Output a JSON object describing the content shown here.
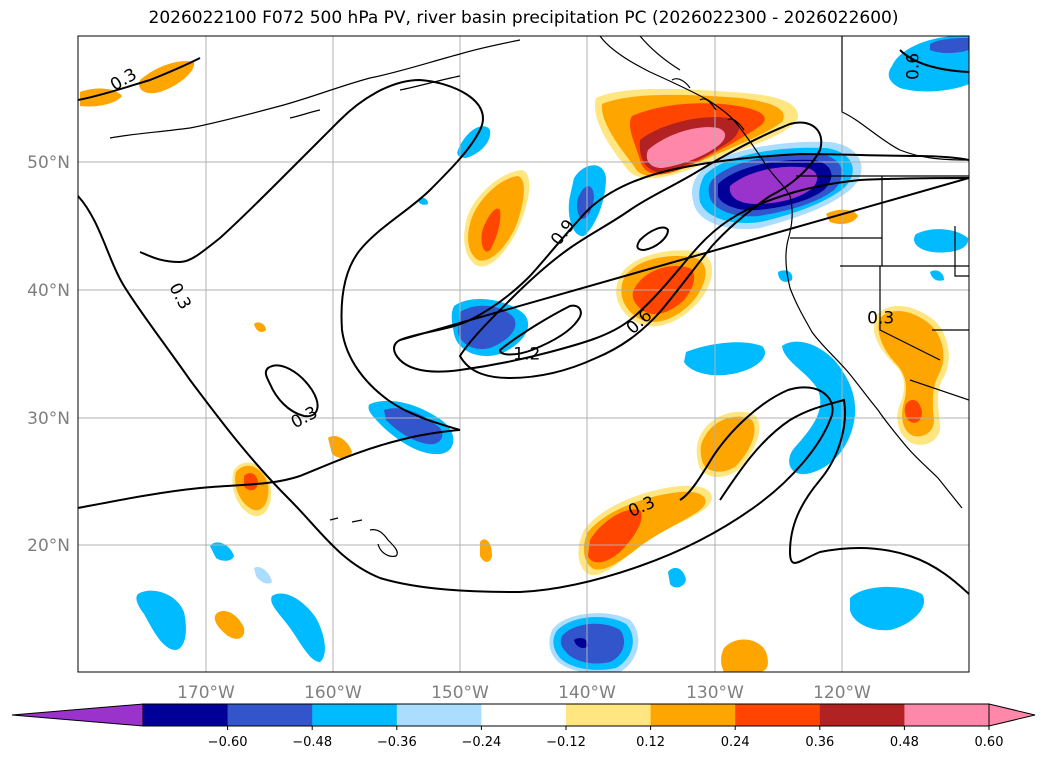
{
  "title": "2026022100 F072 500 hPa PV, river basin precipitation PC (2026022300 - 2026022600)",
  "map": {
    "longitude_labels": [
      "170°W",
      "160°W",
      "150°W",
      "140°W",
      "130°W",
      "120°W"
    ],
    "latitude_labels": [
      "50°N",
      "40°N",
      "30°N",
      "20°N"
    ],
    "contour_labels": [
      {
        "text": "0.3",
        "lon": -176.5,
        "lat": 56.5,
        "rot": -30
      },
      {
        "text": "0.3",
        "lon": -172.0,
        "lat": 39.5,
        "rot": 62
      },
      {
        "text": "0.3",
        "lon": -162.3,
        "lat": 30.0,
        "rot": -28
      },
      {
        "text": "0.9",
        "lon": -142.0,
        "lat": 44.5,
        "rot": -52
      },
      {
        "text": "1.2",
        "lon": -144.8,
        "lat": 35.0,
        "rot": 0
      },
      {
        "text": "0.6",
        "lon": -136.0,
        "lat": 37.5,
        "rot": -42
      },
      {
        "text": "0.3",
        "lon": -135.8,
        "lat": 23.0,
        "rot": -24
      },
      {
        "text": "0.3",
        "lon": -117.0,
        "lat": 37.8,
        "rot": 0
      },
      {
        "text": "0.6",
        "lon": -114.5,
        "lat": 57.5,
        "rot": -90
      }
    ]
  },
  "colorbar": {
    "ticks": [
      "−0.60",
      "−0.48",
      "−0.36",
      "−0.24",
      "−0.12",
      "0.12",
      "0.24",
      "0.36",
      "0.48",
      "0.60"
    ],
    "colors": [
      "#9933cc",
      "#000099",
      "#3355cc",
      "#00bbff",
      "#aaddff",
      "#ffffff",
      "#ffe680",
      "#ffa500",
      "#ff4500",
      "#b22222",
      "#ff88aa",
      "#ff88aa"
    ]
  },
  "colors": {
    "grid": "#b0b0b0",
    "coast": "#000000"
  }
}
